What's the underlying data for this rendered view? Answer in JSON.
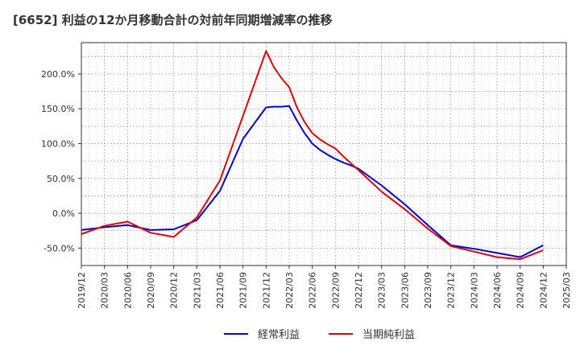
{
  "chart_data": {
    "type": "line",
    "title": "[6652]  利益の12か月移動合計の対前年同期増減率の推移",
    "xlabel": "",
    "ylabel": "",
    "ylim": [
      -75,
      245
    ],
    "x_tick_labels": [
      "2019/12",
      "2020/03",
      "2020/06",
      "2020/09",
      "2020/12",
      "2021/03",
      "2021/06",
      "2021/09",
      "2021/12",
      "2022/03",
      "2022/06",
      "2022/09",
      "2022/12",
      "2023/03",
      "2023/06",
      "2023/09",
      "2023/12",
      "2024/03",
      "2024/06",
      "2024/09",
      "2024/12",
      "2025/03"
    ],
    "y_ticks": [
      -50,
      0,
      50,
      100,
      150,
      200
    ],
    "y_tick_labels": [
      "-50.0%",
      "0.0%",
      "50.0%",
      "100.0%",
      "150.0%",
      "200.0%"
    ],
    "grid": true,
    "legend_position": "bottom",
    "x": [
      "2019/12",
      "2020/03",
      "2020/06",
      "2020/09",
      "2020/12",
      "2021/03",
      "2021/06",
      "2021/09",
      "2021/12",
      "2022/01",
      "2022/02",
      "2022/03",
      "2022/04",
      "2022/05",
      "2022/06",
      "2022/07",
      "2022/08",
      "2022/09",
      "2022/10",
      "2022/11",
      "2022/12",
      "2023/03",
      "2023/06",
      "2023/09",
      "2023/12",
      "2024/03",
      "2024/06",
      "2024/09",
      "2024/12"
    ],
    "series": [
      {
        "name": "経常利益",
        "color": "#0000cc",
        "values": [
          -24,
          -20,
          -17,
          -24,
          -23,
          -10,
          32,
          107,
          152,
          153,
          153,
          154,
          133,
          115,
          100,
          91,
          84,
          78,
          73,
          69,
          64,
          40,
          13,
          -17,
          -46,
          -51,
          -57,
          -63,
          -46
        ]
      },
      {
        "name": "当期純利益",
        "color": "#dd0000",
        "values": [
          -30,
          -18,
          -12,
          -28,
          -34,
          -6,
          47,
          140,
          233,
          210,
          194,
          181,
          152,
          131,
          115,
          106,
          99,
          93,
          82,
          72,
          62,
          31,
          6,
          -22,
          -47,
          -55,
          -63,
          -66,
          -53
        ]
      }
    ]
  }
}
